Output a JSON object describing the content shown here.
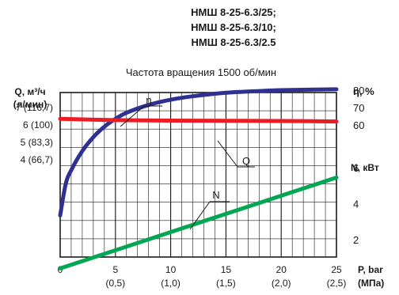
{
  "chart_data": {
    "type": "line",
    "title_lines": [
      "НМШ 8-25-6.3/25;",
      "НМШ 8-25-6.3/10;",
      "НМШ 8-25-6.3/2.5"
    ],
    "subtitle": "Частота вращения 1500 об/мин",
    "x_axis": {
      "label_main": "P, bar",
      "label_sub": "(МПа)",
      "range": [
        0,
        25
      ],
      "ticks": [
        {
          "value": 0,
          "label": "0",
          "sub": ""
        },
        {
          "value": 5,
          "label": "5",
          "sub": "(0,5)"
        },
        {
          "value": 10,
          "label": "10",
          "sub": "(1,0)"
        },
        {
          "value": 15,
          "label": "15",
          "sub": "(1,5)"
        },
        {
          "value": 20,
          "label": "20",
          "sub": "(2,0)"
        },
        {
          "value": 25,
          "label": "25",
          "sub": "(2,5)"
        }
      ]
    },
    "left_axis": {
      "label_main": "Q, м³/ч",
      "label_sub": "(л/мин)",
      "range": [
        0,
        9
      ],
      "ticks": [
        {
          "value": 7,
          "label": "7 (116,7)"
        },
        {
          "value": 6,
          "label": "6 (100)"
        },
        {
          "value": 5,
          "label": "5 (83,3)"
        },
        {
          "value": 4,
          "label": "4 (66,7)"
        }
      ]
    },
    "right_eta_axis": {
      "label": "η, %",
      "ticks": [
        {
          "value": 80,
          "label": "80"
        },
        {
          "value": 70,
          "label": "70"
        },
        {
          "value": 60,
          "label": "60"
        }
      ]
    },
    "right_n_axis": {
      "label": "N, кВт",
      "ticks": [
        {
          "value": 6,
          "label": "6"
        },
        {
          "value": 4,
          "label": "4"
        },
        {
          "value": 2,
          "label": "2"
        }
      ]
    },
    "grid": true,
    "series": [
      {
        "name": "η",
        "color": "#2e3192",
        "points": [
          [
            0,
            8
          ],
          [
            0.5,
            26
          ],
          [
            1,
            34
          ],
          [
            2,
            45
          ],
          [
            3,
            53
          ],
          [
            4,
            59
          ],
          [
            5,
            63.5
          ],
          [
            6,
            67
          ],
          [
            8,
            71.5
          ],
          [
            10,
            74.5
          ],
          [
            12,
            76.5
          ],
          [
            15,
            78.5
          ],
          [
            18,
            79.5
          ],
          [
            20,
            80
          ],
          [
            25,
            80.5
          ]
        ]
      },
      {
        "name": "Q",
        "color": "#ed1c24",
        "points": [
          [
            0,
            6.35
          ],
          [
            5,
            6.28
          ],
          [
            10,
            6.25
          ],
          [
            15,
            6.24
          ],
          [
            20,
            6.23
          ],
          [
            25,
            6.2
          ]
        ]
      },
      {
        "name": "N",
        "color": "#00a651",
        "points": [
          [
            0,
            0.4
          ],
          [
            25,
            5.45
          ]
        ]
      }
    ]
  }
}
